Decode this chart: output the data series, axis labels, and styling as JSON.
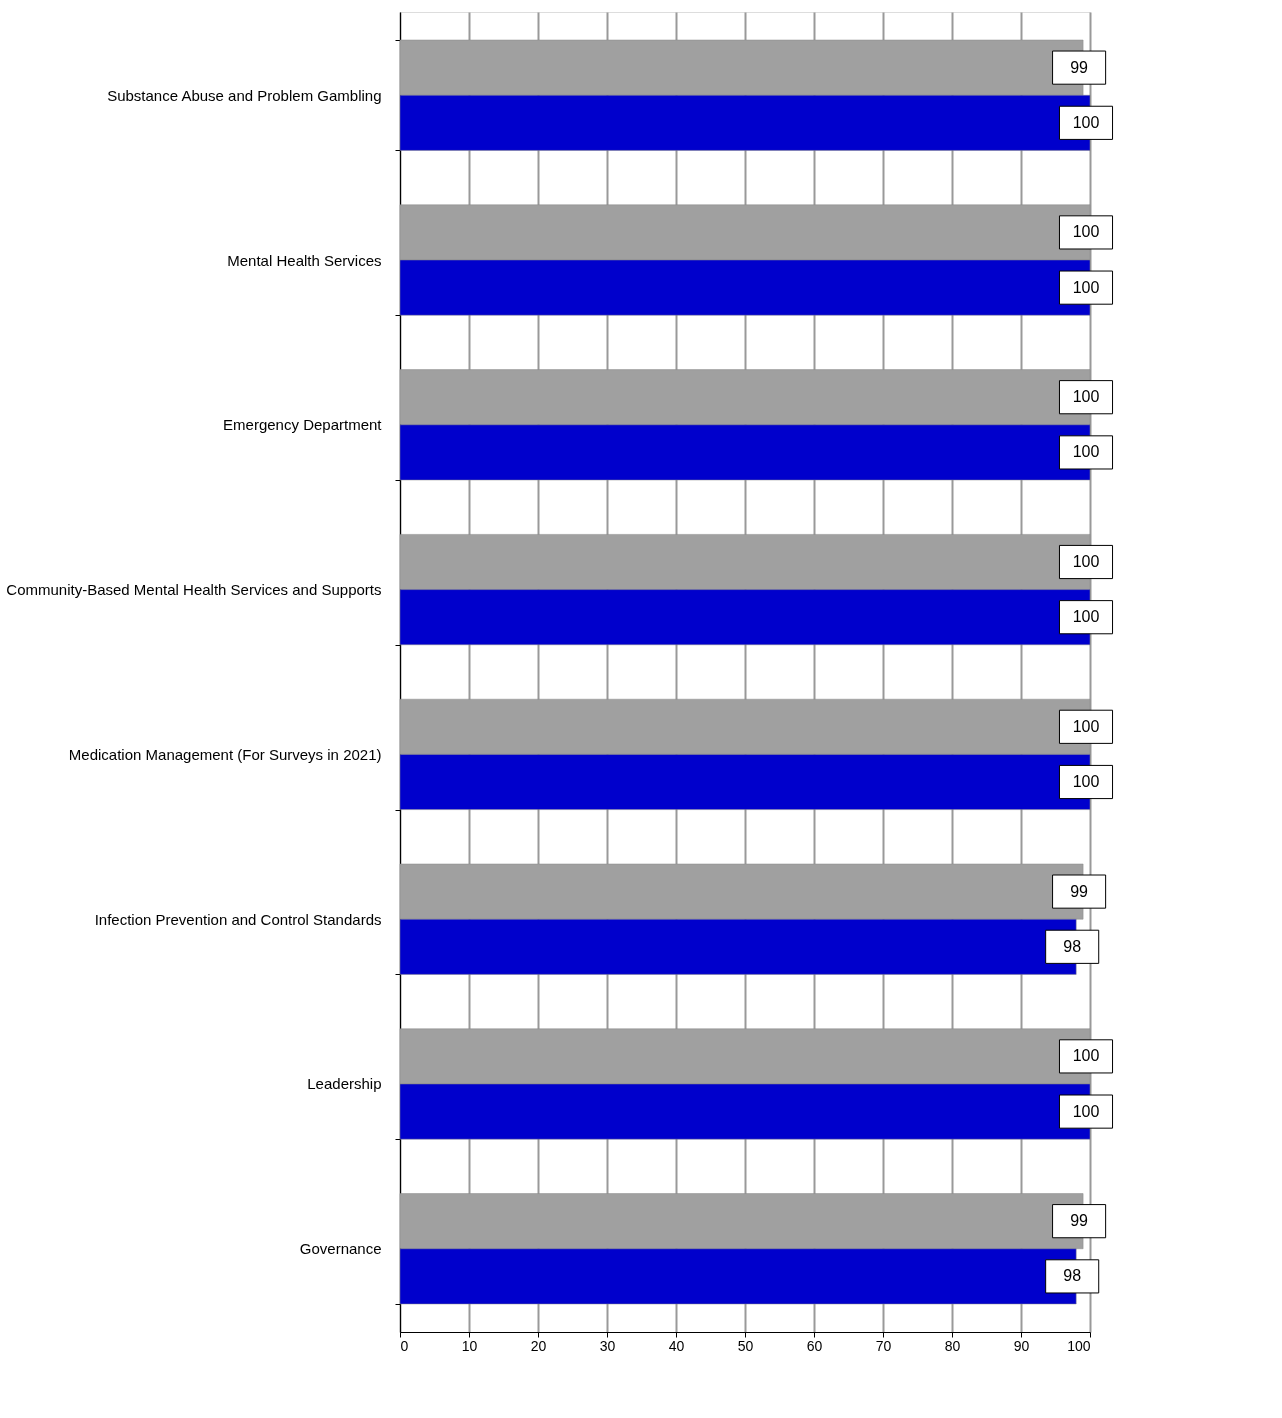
{
  "chart_data": {
    "type": "bar",
    "orientation": "horizontal",
    "categories": [
      "Substance Abuse and Problem Gambling",
      "Mental Health Services",
      "Emergency Department",
      "Community-Based Mental Health Services and Supports",
      "Medication Management (For Surveys in 2021)",
      "Infection Prevention and Control Standards",
      "Leadership",
      "Governance"
    ],
    "series": [
      {
        "color": "#a0a0a0",
        "values": [
          99,
          100,
          100,
          100,
          100,
          99,
          100,
          99
        ]
      },
      {
        "color": "#0000cc",
        "values": [
          100,
          100,
          100,
          100,
          100,
          98,
          100,
          98
        ]
      }
    ],
    "xlim": [
      0,
      100
    ],
    "xticks": [
      0,
      10,
      20,
      30,
      40,
      50,
      60,
      70,
      80,
      90,
      100
    ],
    "grid": "x",
    "data_labels": true
  }
}
